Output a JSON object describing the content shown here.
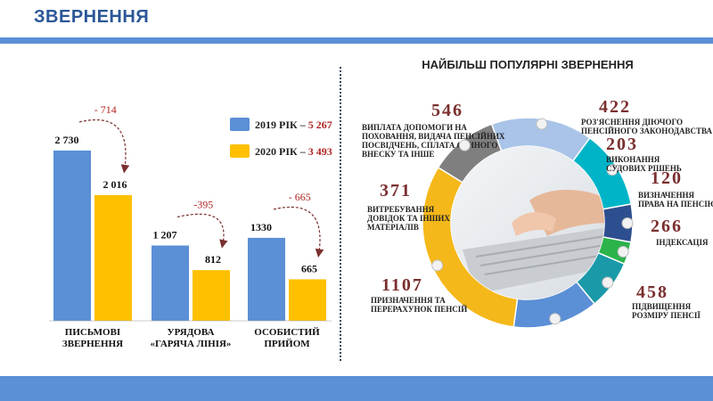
{
  "page": {
    "title": "ЗВЕРНЕННЯ"
  },
  "colors": {
    "series_2019": "#5b8fd6",
    "series_2020": "#ffc000",
    "accent": "#2b5797",
    "diff": "#b22222"
  },
  "chart_data": [
    {
      "type": "bar",
      "categories": [
        [
          "ПИСЬМОВІ",
          "ЗВЕРНЕННЯ"
        ],
        [
          "УРЯДОВА",
          "«ГАРЯЧА ЛІНІЯ»"
        ],
        [
          "ОСОБИСТИЙ",
          "ПРИЙОМ"
        ]
      ],
      "series": [
        {
          "name": "2019 РІК – ",
          "total": "5 267",
          "values": [
            2730,
            1207,
            1330
          ],
          "labels": [
            "2 730",
            "1 207",
            "1330"
          ],
          "color": "#5b8fd6"
        },
        {
          "name": "2020 РІК – ",
          "total": "3 493",
          "values": [
            2016,
            812,
            665
          ],
          "labels": [
            "2 016",
            "812",
            "665"
          ],
          "color": "#ffc000"
        }
      ],
      "differences": [
        "- 714",
        "-395",
        "- 665"
      ],
      "ylim": [
        0,
        3000
      ]
    },
    {
      "type": "pie",
      "title": "НАЙБІЛЬШ ПОПУЛЯРНІ ЗВЕРНЕННЯ",
      "slices": [
        {
          "value": 546,
          "label": "546",
          "text": [
            "ВИПЛАТА ДОПОМОГИ НА",
            "ПОХОВАННЯ, ВИДАЧА ПЕНСІЙНИХ",
            "ПОСВІДЧЕНЬ, СПЛАТА ЄДИНОГО",
            "ВНЕСКУ ТА ІНШЕ"
          ],
          "color": "#a9c4e8"
        },
        {
          "value": 422,
          "label": "422",
          "text": [
            "РОЗ'ЯСНЕННЯ ДІЮЧОГО",
            "ПЕНСІЙНОГО ЗАКОНОДАВСТВА"
          ],
          "color": "#00b4c8"
        },
        {
          "value": 203,
          "label": "203",
          "text": [
            "ВИКОНАННЯ",
            "СУДОВИХ РІШЕНЬ"
          ],
          "color": "#2e4f8f"
        },
        {
          "value": 120,
          "label": "120",
          "text": [
            "ВИЗНАЧЕННЯ",
            "ПРАВА НА ПЕНСІЮ"
          ],
          "color": "#2cb34a"
        },
        {
          "value": 266,
          "label": "266",
          "text": [
            "ІНДЕКСАЦІЯ"
          ],
          "color": "#1a9aa8"
        },
        {
          "value": 458,
          "label": "458",
          "text": [
            "ПІДВИЩЕННЯ",
            "РОЗМІРУ ПЕНСІЇ"
          ],
          "color": "#5b8fd6"
        },
        {
          "value": 1107,
          "label": "1107",
          "text": [
            "ПРИЗНАЧЕННЯ ТА",
            "ПЕРЕРАХУНОК ПЕНСІЙ"
          ],
          "color": "#f5b81a"
        },
        {
          "value": 371,
          "label": "371",
          "text": [
            "ВИТРЕБУВАННЯ",
            "ДОВІДОК ТА ІНШИХ",
            "МАТЕРІАЛІВ"
          ],
          "color": "#7f7f7f"
        }
      ]
    }
  ]
}
